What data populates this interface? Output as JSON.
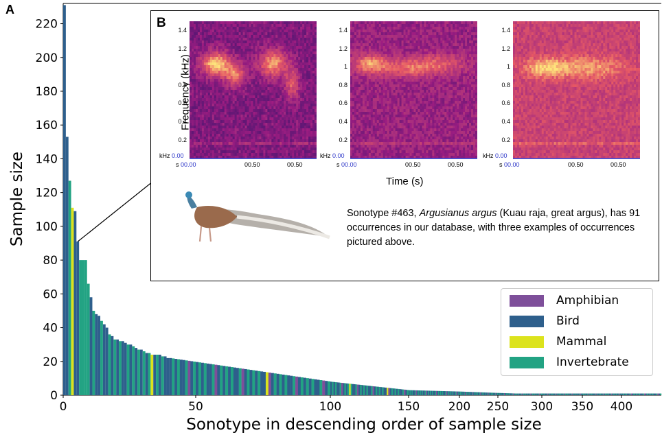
{
  "chart_data": {
    "type": "bar",
    "panel_a_label": "A",
    "panel_b_label": "B",
    "xlabel": "Sonotype in descending order of sample size",
    "ylabel": "Sample size",
    "ylim": [
      0,
      232
    ],
    "yticks": [
      0,
      20,
      40,
      60,
      80,
      100,
      120,
      140,
      160,
      180,
      200,
      220
    ],
    "xtick_labels": [
      "0",
      "50",
      "100",
      "150",
      "200",
      "250",
      "300",
      "350",
      "400"
    ],
    "legend": [
      {
        "name": "Amphibian",
        "color": "#7e4f9a"
      },
      {
        "name": "Bird",
        "color": "#2e5f8c"
      },
      {
        "name": "Mammal",
        "color": "#dce31d"
      },
      {
        "name": "Invertebrate",
        "color": "#22a383"
      }
    ],
    "head_values": [
      231,
      153,
      127,
      111,
      109,
      91,
      80,
      80,
      80,
      66,
      58,
      50,
      48,
      47,
      44,
      42,
      40,
      36,
      35,
      33,
      33,
      32,
      32,
      31,
      30,
      30,
      29,
      28,
      27,
      27,
      26,
      25,
      25,
      24,
      24,
      24,
      24,
      23,
      23,
      22
    ],
    "head_groups": [
      "B",
      "B",
      "I",
      "M",
      "B",
      "B",
      "I",
      "I",
      "I",
      "I",
      "B",
      "I",
      "B",
      "B",
      "I",
      "B",
      "B",
      "I",
      "B",
      "I",
      "B",
      "I",
      "B",
      "B",
      "I",
      "B",
      "I",
      "B",
      "I",
      "B",
      "I",
      "B",
      "I",
      "M",
      "B",
      "I",
      "B",
      "I",
      "B",
      "B"
    ],
    "tail_segments": [
      {
        "from": 40,
        "to": 100,
        "value_start": 22,
        "value_end": 8
      },
      {
        "from": 100,
        "to": 150,
        "value_start": 8,
        "value_end": 3
      },
      {
        "from": 150,
        "to": 270,
        "value_start": 3,
        "value_end": 1
      },
      {
        "from": 270,
        "to": 430,
        "value_start": 1,
        "value_end": 1
      }
    ],
    "highlight": {
      "rank": 5,
      "value": 91
    },
    "inset": {
      "spectrogram_ylabel": "Frequency (kHz)",
      "spectrogram_yticks": [
        "1.4",
        "1.2",
        "1",
        "0.8",
        "0.6",
        "0.4",
        "0.2"
      ],
      "spectrogram_unit": "kHz",
      "spectrogram_zero": "0.00",
      "spectrogram_xunit": "s",
      "spectrogram_xticks": [
        "00.00",
        "00.50",
        "00.50"
      ],
      "xlabel": "Time (s)",
      "caption_prefix": "Sonotype #463, ",
      "caption_species": "Argusianus argus",
      "caption_rest": " (Kuau raja, great argus), has 91 occurrences in our database, with three examples of occurrences pictured above."
    }
  }
}
